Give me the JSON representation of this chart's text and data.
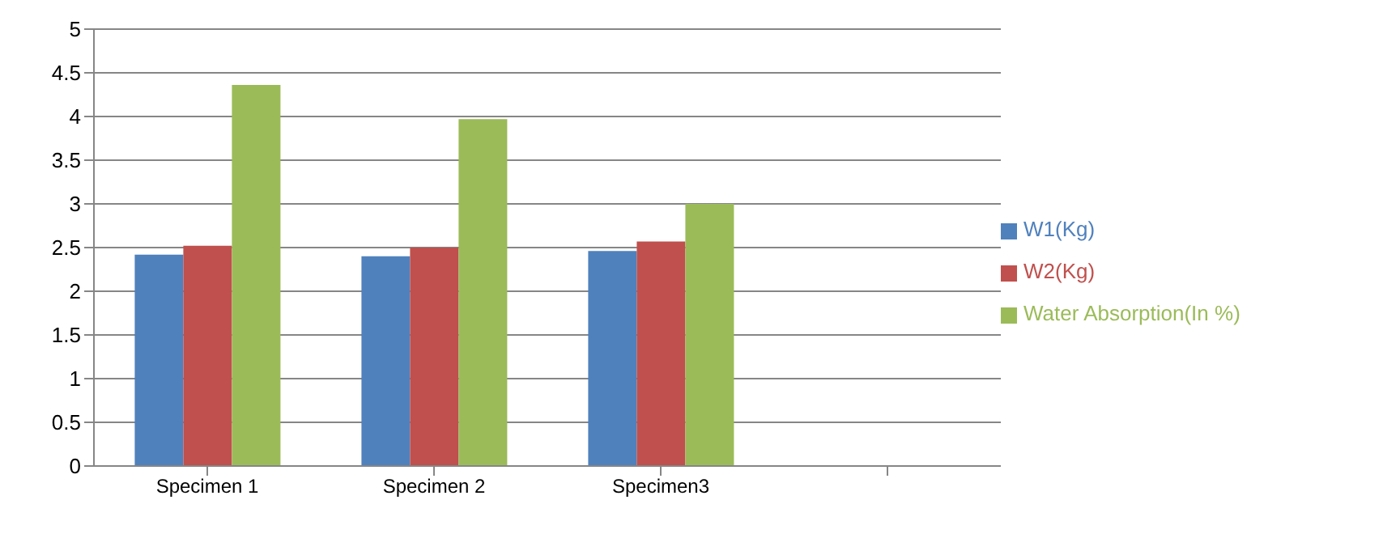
{
  "chart_data": {
    "type": "bar",
    "categories": [
      "Specimen 1",
      "Specimen 2",
      "Specimen3",
      null
    ],
    "series": [
      {
        "name": "W1(Kg)",
        "color": "#4f81bd",
        "values": [
          2.42,
          2.4,
          2.46,
          null
        ]
      },
      {
        "name": "W2(Kg)",
        "color": "#c0504d",
        "values": [
          2.52,
          2.5,
          2.57,
          null
        ]
      },
      {
        "name": "Water Absorption(In %)",
        "color": "#9bbb59",
        "values": [
          4.36,
          3.97,
          3.0,
          null
        ]
      }
    ],
    "ylim": [
      0,
      5
    ],
    "yticks": [
      0,
      0.5,
      1,
      1.5,
      2,
      2.5,
      3,
      3.5,
      4,
      4.5,
      5
    ],
    "grid": "y",
    "legend": "right"
  }
}
